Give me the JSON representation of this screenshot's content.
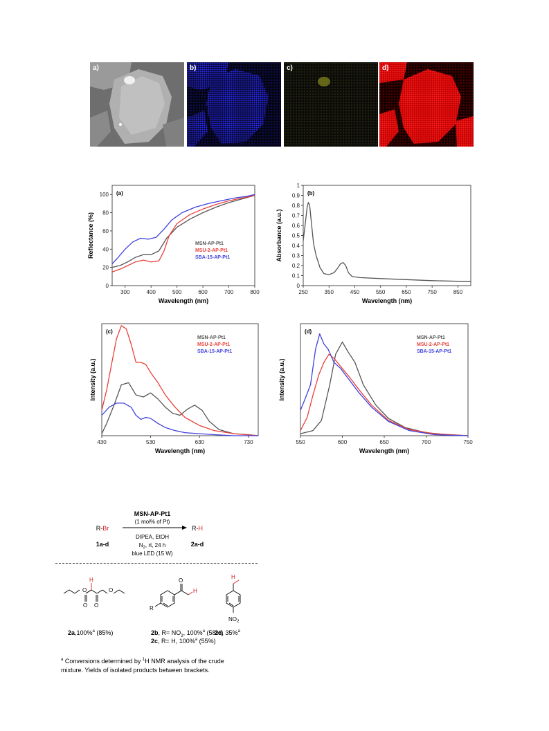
{
  "micrographs": [
    {
      "label": "a)"
    },
    {
      "label": "b)"
    },
    {
      "label": "c)"
    },
    {
      "label": "d)"
    }
  ],
  "chart_data": [
    {
      "type": "line",
      "panel_label": "(a)",
      "xlabel": "Wavelength (nm)",
      "ylabel": "Reflectance (%)",
      "xlim": [
        250,
        800
      ],
      "ylim": [
        0,
        110
      ],
      "xticks": [
        300,
        400,
        500,
        600,
        700,
        800
      ],
      "yticks": [
        0,
        20,
        40,
        60,
        80,
        100
      ],
      "legend": "center-right",
      "series": [
        {
          "name": "MSN-AP-Pt1",
          "color": "#555555",
          "x": [
            250,
            280,
            310,
            340,
            370,
            400,
            430,
            460,
            500,
            550,
            600,
            650,
            700,
            750,
            800
          ],
          "y": [
            20,
            22,
            26,
            31,
            34,
            34,
            38,
            52,
            64,
            73,
            80,
            86,
            91,
            95,
            99
          ]
        },
        {
          "name": "MSU-2-AP-Pt1",
          "color": "#e8403a",
          "x": [
            250,
            280,
            310,
            340,
            370,
            400,
            430,
            450,
            470,
            500,
            550,
            600,
            650,
            700,
            750,
            800
          ],
          "y": [
            15,
            18,
            22,
            26,
            28,
            26,
            27,
            38,
            55,
            68,
            78,
            84,
            89,
            93,
            96,
            99
          ]
        },
        {
          "name": "SBA-15-AP-Pt1",
          "color": "#4040e0",
          "x": [
            250,
            270,
            300,
            330,
            360,
            390,
            420,
            450,
            480,
            520,
            570,
            620,
            670,
            720,
            770,
            800
          ],
          "y": [
            24,
            30,
            40,
            48,
            52,
            51,
            53,
            62,
            72,
            80,
            86,
            90,
            93,
            96,
            98,
            100
          ]
        }
      ]
    },
    {
      "type": "line",
      "panel_label": "(b)",
      "xlabel": "Wavelength (nm)",
      "ylabel": "Absorbance (a.u.)",
      "xlim": [
        250,
        900
      ],
      "ylim": [
        0,
        1
      ],
      "xticks": [
        250,
        350,
        450,
        550,
        650,
        750,
        850
      ],
      "yticks": [
        0,
        0.1,
        0.2,
        0.3,
        0.4,
        0.5,
        0.6,
        0.7,
        0.8,
        0.9,
        1
      ],
      "series": [
        {
          "color": "#555555",
          "x": [
            250,
            258,
            265,
            270,
            275,
            282,
            290,
            300,
            315,
            330,
            350,
            370,
            385,
            395,
            405,
            415,
            425,
            440,
            470,
            550,
            650,
            750,
            900
          ],
          "y": [
            0.45,
            0.62,
            0.78,
            0.83,
            0.8,
            0.62,
            0.42,
            0.3,
            0.18,
            0.12,
            0.11,
            0.13,
            0.18,
            0.22,
            0.23,
            0.2,
            0.13,
            0.09,
            0.08,
            0.07,
            0.06,
            0.05,
            0.04
          ]
        }
      ]
    },
    {
      "type": "line",
      "panel_label": "(c)",
      "xlabel": "Wavelength (nm)",
      "ylabel": "Intensity (a.u.)",
      "xlim": [
        430,
        750
      ],
      "ylim": [
        0,
        1.1
      ],
      "xticks": [
        430,
        530,
        630,
        730
      ],
      "legend": "top-right",
      "series": [
        {
          "name": "MSN-AP-Pt1",
          "color": "#555555",
          "x": [
            430,
            440,
            455,
            470,
            485,
            500,
            515,
            530,
            545,
            560,
            575,
            590,
            605,
            620,
            635,
            650,
            670,
            700,
            730,
            750
          ],
          "y": [
            0.02,
            0.12,
            0.3,
            0.5,
            0.52,
            0.4,
            0.38,
            0.42,
            0.36,
            0.28,
            0.22,
            0.2,
            0.26,
            0.3,
            0.25,
            0.14,
            0.06,
            0.02,
            0.01,
            0.0
          ]
        },
        {
          "name": "MSU-2-AP-Pt1",
          "color": "#e8403a",
          "x": [
            430,
            440,
            450,
            460,
            470,
            480,
            490,
            500,
            510,
            520,
            530,
            545,
            560,
            580,
            600,
            630,
            660,
            700,
            750
          ],
          "y": [
            0.25,
            0.45,
            0.7,
            0.95,
            1.08,
            1.05,
            0.9,
            0.72,
            0.72,
            0.7,
            0.62,
            0.52,
            0.4,
            0.28,
            0.18,
            0.1,
            0.05,
            0.02,
            0.0
          ]
        },
        {
          "name": "SBA-15-AP-Pt1",
          "color": "#4040e0",
          "x": [
            430,
            445,
            460,
            475,
            490,
            500,
            510,
            520,
            530,
            545,
            560,
            580,
            600,
            630,
            660,
            700,
            750
          ],
          "y": [
            0.2,
            0.28,
            0.32,
            0.32,
            0.28,
            0.2,
            0.16,
            0.18,
            0.17,
            0.12,
            0.08,
            0.05,
            0.03,
            0.02,
            0.01,
            0.0,
            0.0
          ]
        }
      ]
    },
    {
      "type": "line",
      "panel_label": "(d)",
      "xlabel": "Wavelength (nm)",
      "ylabel": "Intensity (a.u.)",
      "xlim": [
        550,
        750
      ],
      "ylim": [
        0,
        1.1
      ],
      "xticks": [
        550,
        600,
        650,
        700,
        750
      ],
      "legend": "top-right",
      "series": [
        {
          "name": "MSN-AP-Pt1",
          "color": "#555555",
          "x": [
            550,
            565,
            575,
            585,
            592,
            600,
            607,
            615,
            625,
            640,
            655,
            675,
            700,
            725,
            750
          ],
          "y": [
            0.02,
            0.05,
            0.15,
            0.5,
            0.8,
            0.92,
            0.82,
            0.72,
            0.5,
            0.3,
            0.17,
            0.08,
            0.03,
            0.01,
            0.0
          ]
        },
        {
          "name": "MSU-2-AP-Pt1",
          "color": "#e8403a",
          "x": [
            550,
            558,
            565,
            572,
            578,
            584,
            590,
            598,
            608,
            620,
            635,
            655,
            680,
            710,
            750
          ],
          "y": [
            0.05,
            0.18,
            0.4,
            0.6,
            0.72,
            0.8,
            0.76,
            0.68,
            0.58,
            0.45,
            0.3,
            0.15,
            0.06,
            0.02,
            0.0
          ]
        },
        {
          "name": "SBA-15-AP-Pt1",
          "color": "#4040e0",
          "x": [
            550,
            555,
            562,
            568,
            573,
            578,
            583,
            590,
            598,
            608,
            620,
            635,
            655,
            680,
            710,
            750
          ],
          "y": [
            0.25,
            0.35,
            0.5,
            0.85,
            1.0,
            0.9,
            0.85,
            0.72,
            0.66,
            0.55,
            0.42,
            0.28,
            0.14,
            0.05,
            0.01,
            0.0
          ]
        }
      ]
    }
  ],
  "scheme": {
    "catalyst": "MSN-AP-Pt1",
    "catalyst_loading": "(1 mol% of Pt)",
    "conditions": [
      "DIPEA, EtOH",
      "N",
      "2",
      ", rt, 24 h",
      "blue LED (15 W)"
    ],
    "reactant_prefix": "R-",
    "reactant_atom": "Br",
    "reactant_label": "1a-d",
    "product_prefix": "R-",
    "product_atom": "H",
    "product_label": "2a-d",
    "struct_H": "H",
    "struct_O": "O",
    "struct_R": "R",
    "struct_NO2": "NO",
    "struct_NO2_sub": "2"
  },
  "products": [
    {
      "id": "2a",
      "text": ",100%",
      "sup": "a",
      "yield": " (85%)"
    },
    {
      "id": "2b",
      "text": ", R= NO",
      "sub": "2",
      "text2": ", 100%",
      "sup": "a",
      "yield": " (58%)"
    },
    {
      "id": "2c",
      "text": ", R= H, 100%",
      "sup": "a",
      "yield": " (55%)"
    },
    {
      "id": "2d",
      "text": ", 35%",
      "sup": "a"
    }
  ],
  "footnote": {
    "marker": "a",
    "line1_pre": " Conversions determined by ",
    "nmr_sup": "1",
    "line1_post": "H NMR analysis of the crude",
    "line2": "mixture. Yields of isolated products between brackets."
  }
}
